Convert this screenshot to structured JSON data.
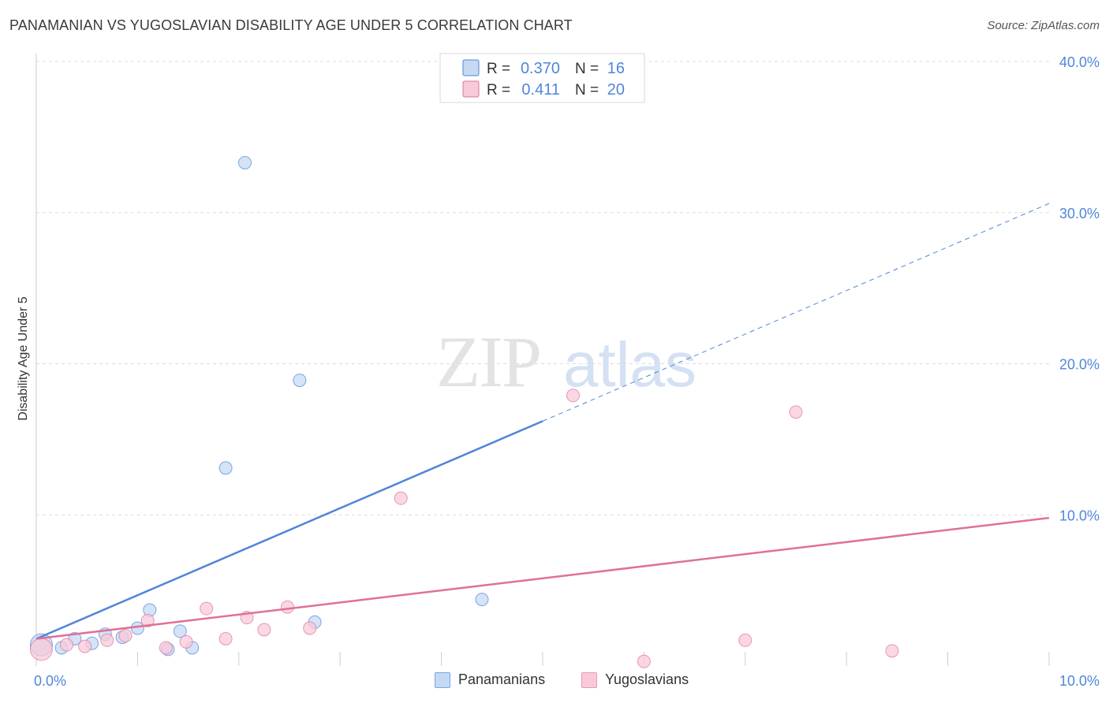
{
  "chart_data": {
    "type": "scatter",
    "title": "PANAMANIAN VS YUGOSLAVIAN DISABILITY AGE UNDER 5 CORRELATION CHART",
    "source": "Source: ZipAtlas.com",
    "ylabel": "Disability Age Under 5",
    "xlabel": "",
    "xlim": [
      0,
      10
    ],
    "ylim": [
      0,
      40
    ],
    "x_ticks": [
      "0.0%",
      "10.0%"
    ],
    "y_ticks": [
      {
        "value": 10,
        "label": "10.0%"
      },
      {
        "value": 20,
        "label": "20.0%"
      },
      {
        "value": 30,
        "label": "30.0%"
      },
      {
        "value": 40,
        "label": "40.0%"
      }
    ],
    "watermark": {
      "zip": "ZIP",
      "atlas": "atlas"
    },
    "legend_top": [
      {
        "series": "Panamanians",
        "r_label": "R =",
        "r_value": "0.370",
        "n_label": "N =",
        "n_value": "16"
      },
      {
        "series": "Yugoslavians",
        "r_label": "R =",
        "r_value": "0.411",
        "n_label": "N =",
        "n_value": "20"
      }
    ],
    "series": [
      {
        "name": "Panamanians",
        "color": "#4f86d9",
        "fill": "#c5d9f3",
        "trend": {
          "x0": 0.0,
          "y0": 1.8,
          "x_solid_end": 5.0,
          "x_dash_end": 10.0,
          "slope": 2.88
        },
        "points": [
          {
            "x": 0.05,
            "y": 1.4,
            "size": "large"
          },
          {
            "x": 0.25,
            "y": 1.2
          },
          {
            "x": 0.38,
            "y": 1.8
          },
          {
            "x": 0.55,
            "y": 1.5
          },
          {
            "x": 0.68,
            "y": 2.1
          },
          {
            "x": 0.85,
            "y": 1.9
          },
          {
            "x": 1.0,
            "y": 2.5
          },
          {
            "x": 1.12,
            "y": 3.7
          },
          {
            "x": 1.3,
            "y": 1.1
          },
          {
            "x": 1.42,
            "y": 2.3
          },
          {
            "x": 1.54,
            "y": 1.2
          },
          {
            "x": 1.87,
            "y": 13.1
          },
          {
            "x": 2.06,
            "y": 33.3
          },
          {
            "x": 2.6,
            "y": 18.9
          },
          {
            "x": 2.75,
            "y": 2.9
          },
          {
            "x": 4.4,
            "y": 4.4
          }
        ]
      },
      {
        "name": "Yugoslavians",
        "color": "#e07098",
        "fill": "#f8cad9",
        "trend": {
          "x0": 0.0,
          "y0": 1.8,
          "x_solid_end": 10.0,
          "slope": 0.8
        },
        "points": [
          {
            "x": 0.05,
            "y": 1.1,
            "size": "large"
          },
          {
            "x": 0.3,
            "y": 1.4
          },
          {
            "x": 0.48,
            "y": 1.3
          },
          {
            "x": 0.7,
            "y": 1.7
          },
          {
            "x": 0.88,
            "y": 2.0
          },
          {
            "x": 1.1,
            "y": 3.0
          },
          {
            "x": 1.28,
            "y": 1.2
          },
          {
            "x": 1.48,
            "y": 1.6
          },
          {
            "x": 1.68,
            "y": 3.8
          },
          {
            "x": 1.87,
            "y": 1.8
          },
          {
            "x": 2.08,
            "y": 3.2
          },
          {
            "x": 2.25,
            "y": 2.4
          },
          {
            "x": 2.48,
            "y": 3.9
          },
          {
            "x": 2.7,
            "y": 2.5
          },
          {
            "x": 3.6,
            "y": 11.1
          },
          {
            "x": 5.3,
            "y": 17.9
          },
          {
            "x": 6.0,
            "y": 0.3
          },
          {
            "x": 7.0,
            "y": 1.7
          },
          {
            "x": 7.5,
            "y": 16.8
          },
          {
            "x": 8.45,
            "y": 1.0
          }
        ]
      }
    ]
  }
}
